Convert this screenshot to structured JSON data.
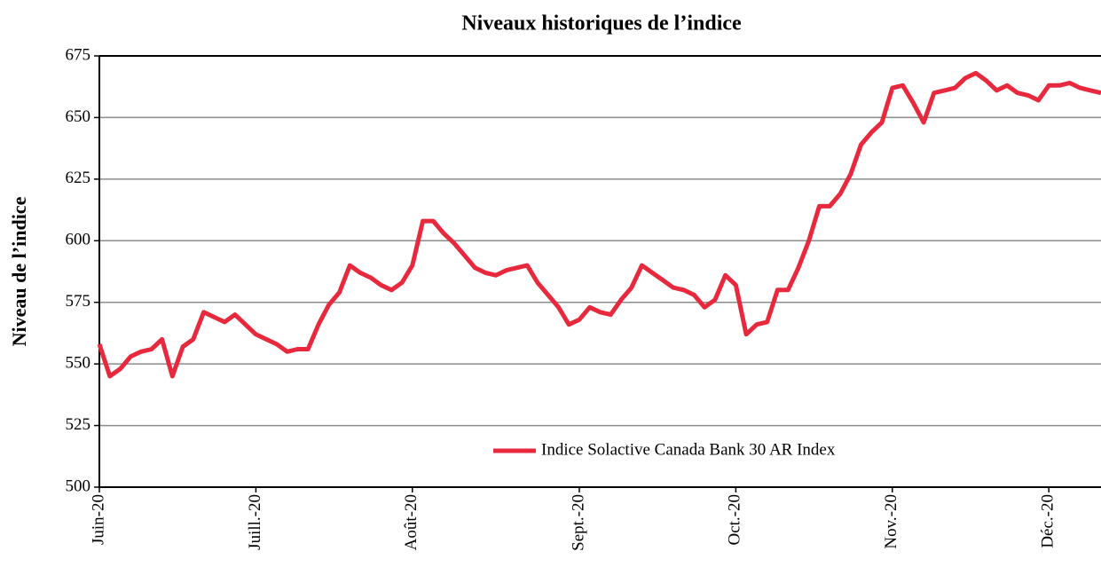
{
  "chart_data": {
    "type": "line",
    "title": "Niveaux historiques de l’indice",
    "y_label": "Niveau de l’indice",
    "categories": [
      "Juin-20",
      null,
      null,
      null,
      null,
      null,
      null,
      null,
      null,
      null,
      null,
      null,
      null,
      null,
      null,
      "Juill.-20",
      null,
      null,
      null,
      null,
      null,
      null,
      null,
      null,
      null,
      null,
      null,
      null,
      null,
      null,
      "Août-20",
      null,
      null,
      null,
      null,
      null,
      null,
      null,
      null,
      null,
      null,
      null,
      null,
      null,
      null,
      null,
      "Sept.-20",
      null,
      null,
      null,
      null,
      null,
      null,
      null,
      null,
      null,
      null,
      null,
      null,
      null,
      null,
      "Oct.-20",
      null,
      null,
      null,
      null,
      null,
      null,
      null,
      null,
      null,
      null,
      null,
      null,
      null,
      null,
      "Nov.-20",
      null,
      null,
      null,
      null,
      null,
      null,
      null,
      null,
      null,
      null,
      null,
      null,
      null,
      null,
      "Déc.-20",
      null,
      null,
      null,
      null,
      null
    ],
    "series": [
      {
        "name": "Indice Solactive Canada Bank 30 AR Index",
        "color": "#e8283c",
        "values": [
          558,
          545,
          548,
          553,
          555,
          556,
          560,
          545,
          557,
          560,
          571,
          569,
          567,
          570,
          566,
          562,
          560,
          558,
          555,
          556,
          556,
          566,
          574,
          579,
          590,
          587,
          585,
          582,
          580,
          583,
          590,
          608,
          608,
          603,
          599,
          594,
          589,
          587,
          586,
          588,
          589,
          590,
          583,
          578,
          573,
          566,
          568,
          573,
          571,
          570,
          576,
          581,
          590,
          587,
          584,
          581,
          580,
          578,
          573,
          576,
          586,
          582,
          562,
          566,
          567,
          580,
          580,
          589,
          600,
          614,
          614,
          619,
          627,
          639,
          644,
          648,
          662,
          663,
          656,
          648,
          660,
          661,
          662,
          666,
          668,
          665,
          661,
          663,
          660,
          659,
          657,
          663,
          663,
          664,
          662,
          661,
          660
        ]
      }
    ],
    "ylim": [
      500,
      675
    ],
    "yticks": [
      500,
      525,
      550,
      575,
      600,
      625,
      650,
      675
    ],
    "grid": true,
    "legend": "bottom-right"
  }
}
